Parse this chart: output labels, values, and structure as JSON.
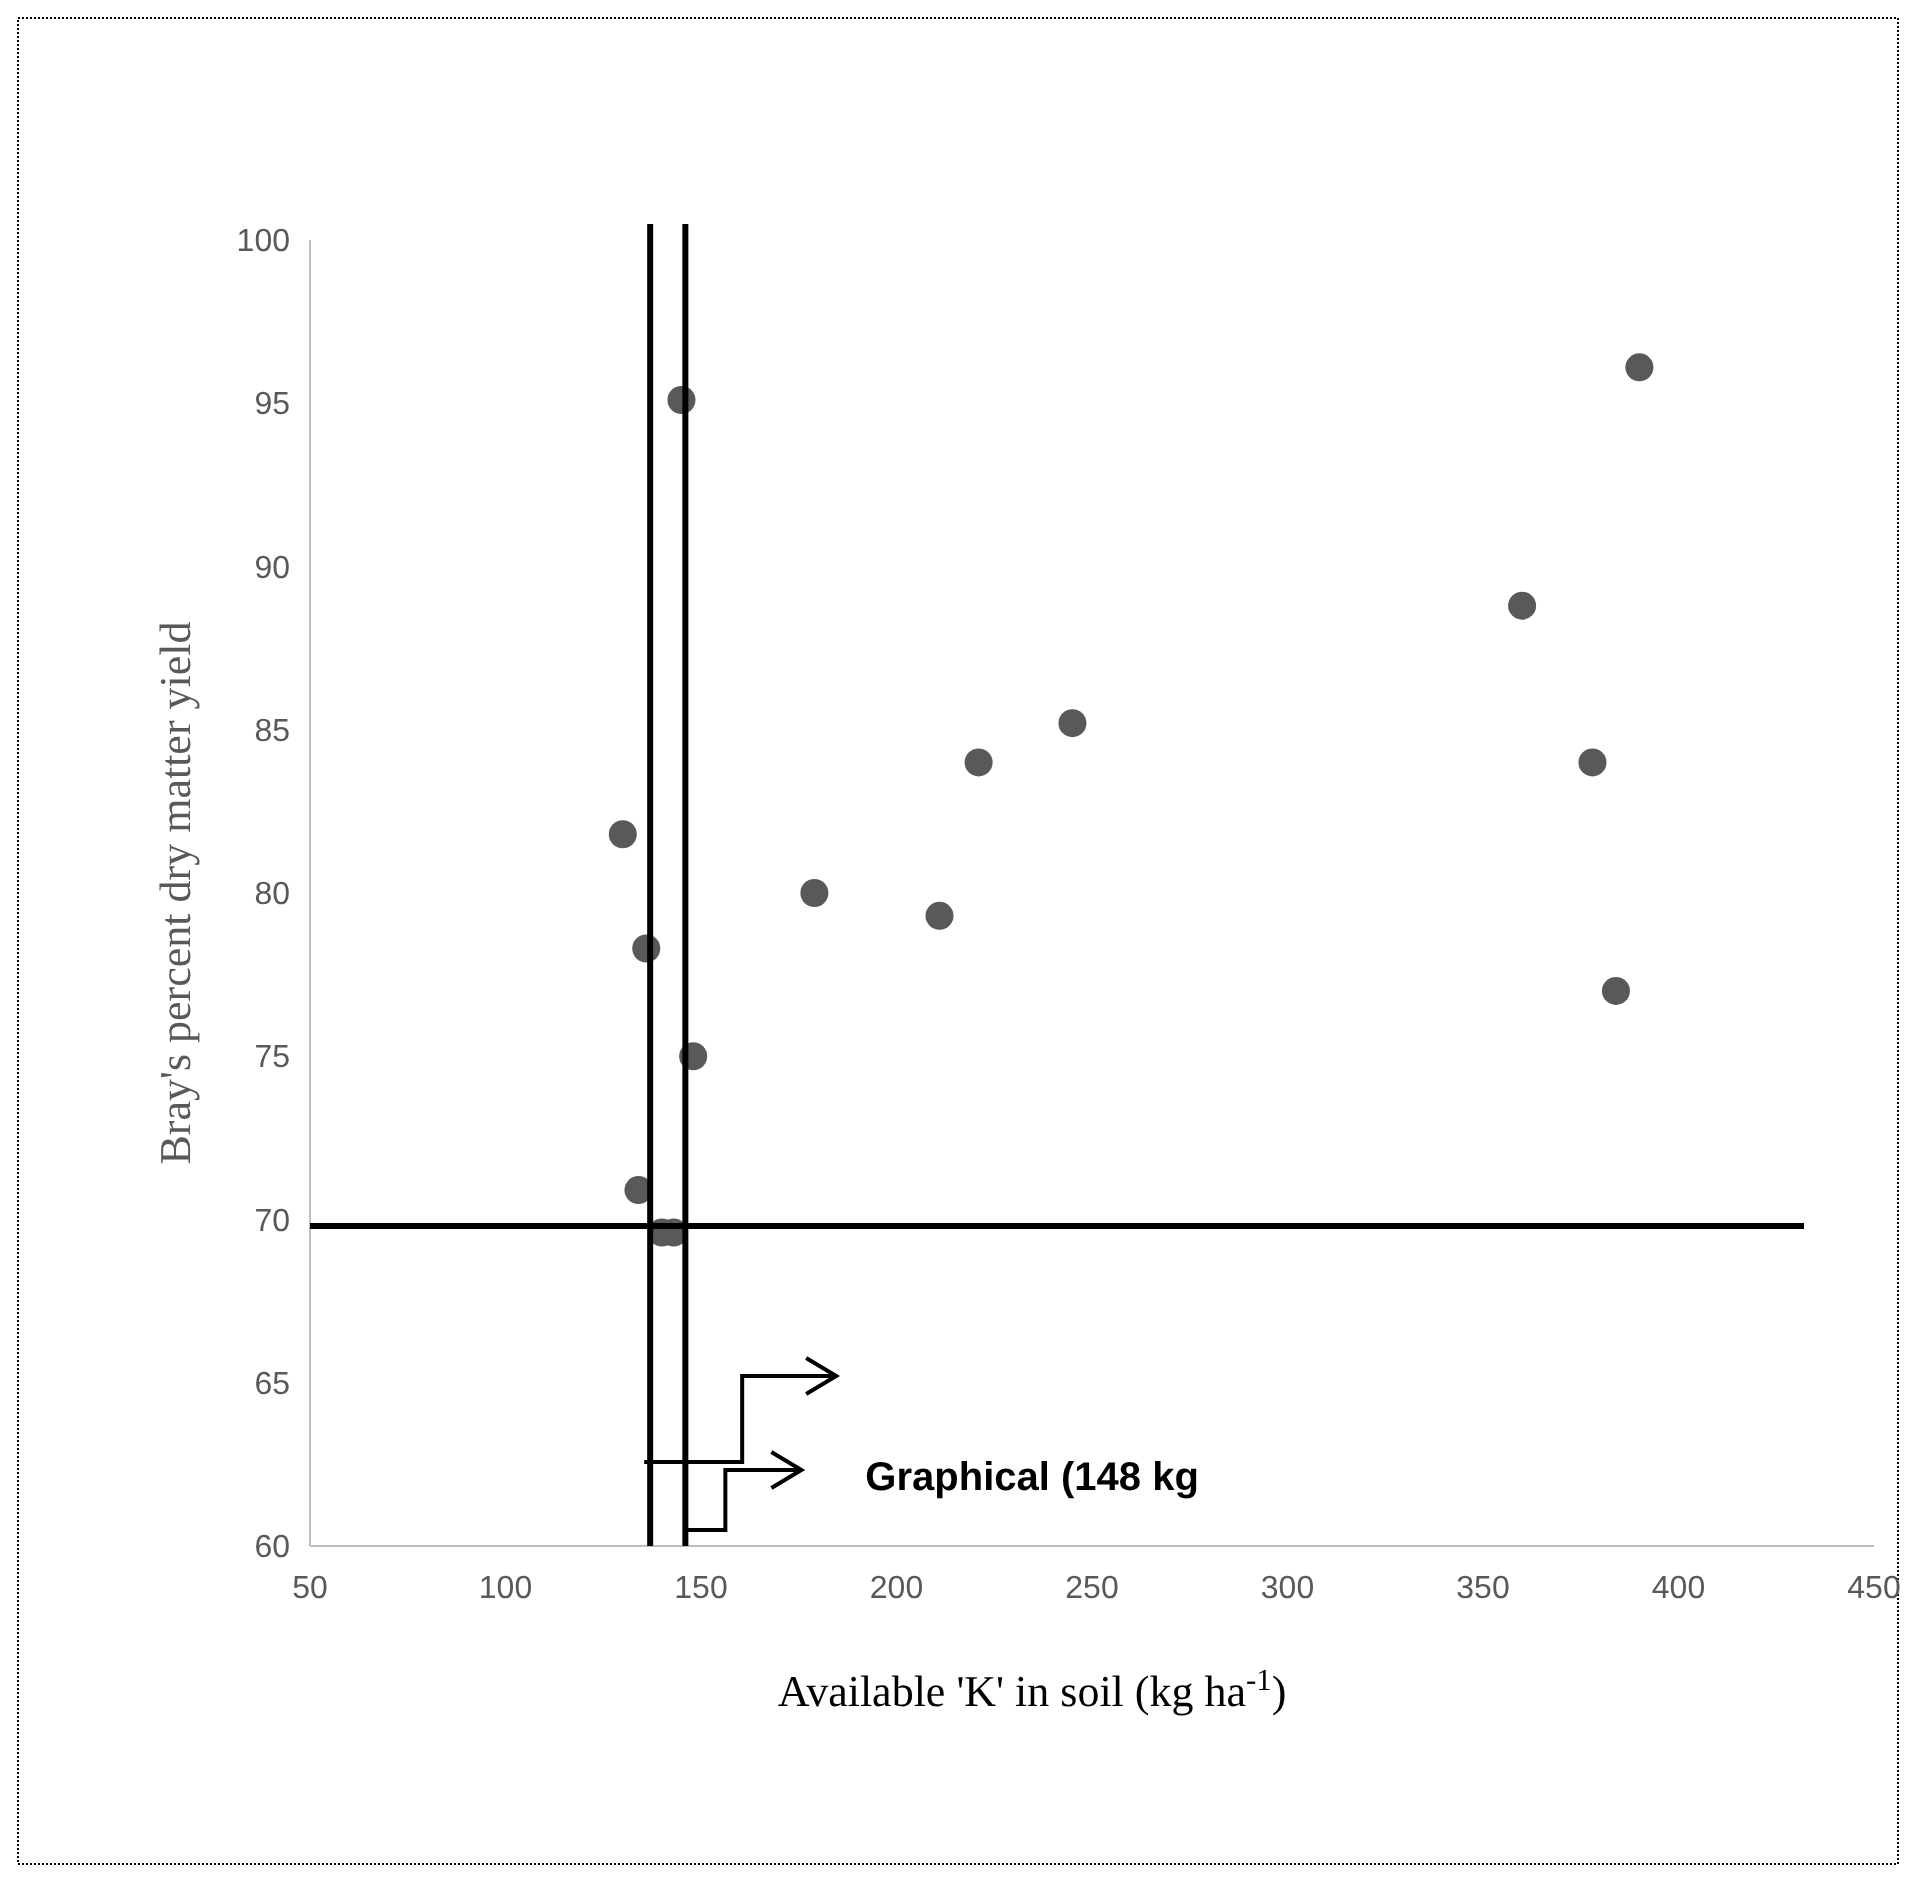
{
  "chart_data": {
    "type": "scatter",
    "xlabel": "Available 'K' in soil (kg ha$^{-1}$)",
    "ylabel": "Bray's percent dry matter yield",
    "x": [
      130,
      136,
      134,
      140,
      143,
      145,
      148,
      179,
      211,
      221,
      245,
      360,
      378,
      384,
      390
    ],
    "series": [
      {
        "color": "#595959",
        "values": [
          81.8,
          78.3,
          70.9,
          69.6,
          69.6,
          95.1,
          75.0,
          80.0,
          79.3,
          84.0,
          85.2,
          88.8,
          84.0,
          77.0,
          96.1
        ]
      }
    ],
    "marker": "circle",
    "xlim": [
      50,
      450
    ],
    "xticks": [
      50,
      100,
      150,
      200,
      250,
      300,
      350,
      400,
      450
    ],
    "ylim": [
      60,
      100
    ],
    "yticks": [
      60,
      65,
      70,
      75,
      80,
      85,
      90,
      95,
      100
    ],
    "grid": false,
    "ref_lines": [
      {
        "axis": "x",
        "value": 137,
        "color": "#000000"
      },
      {
        "axis": "x",
        "value": 146,
        "color": "#000000"
      },
      {
        "axis": "y",
        "value": 69.8,
        "color": "#000000"
      }
    ],
    "annotations": [
      "Graphical (148 kg"
    ]
  }
}
